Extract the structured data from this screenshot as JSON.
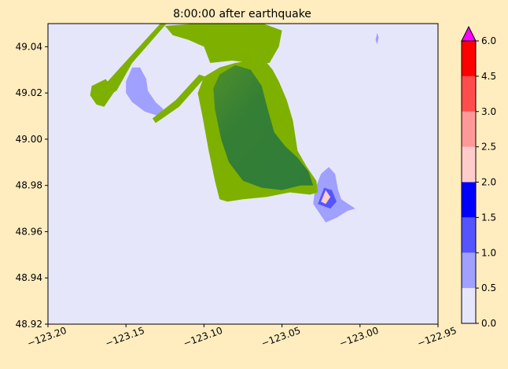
{
  "chart_data": {
    "type": "heatmap",
    "title": "8:00:00 after earthquake",
    "xlabel": "",
    "ylabel": "",
    "xlim": [
      -123.2,
      -122.95
    ],
    "ylim": [
      48.92,
      49.05
    ],
    "x_ticks": [
      -123.2,
      -123.15,
      -123.1,
      -123.05,
      -123.0,
      -122.95
    ],
    "x_tick_labels": [
      "−123.20",
      "−123.15",
      "−123.10",
      "−123.05",
      "−123.00",
      "−122.95"
    ],
    "y_ticks": [
      48.92,
      48.94,
      48.96,
      48.98,
      49.0,
      49.02,
      49.04
    ],
    "y_tick_labels": [
      "48.92",
      "48.94",
      "48.96",
      "48.98",
      "49.00",
      "49.02",
      "49.04"
    ],
    "background_value_color": "#e6e6fb",
    "land_colors": {
      "dark": "#357f35",
      "light": "#7eb000"
    },
    "colorbar": {
      "levels": [
        0.0,
        0.5,
        1.0,
        1.5,
        2.0,
        2.5,
        3.0,
        4.5,
        6.0
      ],
      "tick_labels": [
        "0.0",
        "0.5",
        "1.0",
        "1.5",
        "2.0",
        "2.5",
        "3.0",
        "4.5",
        "6.0"
      ],
      "colors": [
        "#e6e6fb",
        "#a0a0ff",
        "#5555ff",
        "#0000ff",
        "#ffcccc",
        "#ff9999",
        "#ff4d4d",
        "#ff0000"
      ],
      "extend_max_color": "#ff00ff"
    },
    "inundation_patches": [
      {
        "name": "west-bay",
        "level": 0.5,
        "points": [
          [
            -123.15,
            49.025
          ],
          [
            -123.146,
            49.031
          ],
          [
            -123.141,
            49.031
          ],
          [
            -123.137,
            49.026
          ],
          [
            -123.136,
            49.021
          ],
          [
            -123.131,
            49.016
          ],
          [
            -123.126,
            49.013
          ],
          [
            -123.129,
            49.01
          ],
          [
            -123.138,
            49.012
          ],
          [
            -123.146,
            49.016
          ],
          [
            -123.15,
            49.02
          ]
        ]
      },
      {
        "name": "east-spit-shallow",
        "level": 0.5,
        "points": [
          [
            -123.025,
            48.985
          ],
          [
            -123.02,
            48.988
          ],
          [
            -123.016,
            48.985
          ],
          [
            -123.014,
            48.978
          ],
          [
            -123.012,
            48.974
          ],
          [
            -123.003,
            48.97
          ],
          [
            -123.008,
            48.969
          ],
          [
            -123.015,
            48.966
          ],
          [
            -123.022,
            48.964
          ],
          [
            -123.03,
            48.972
          ],
          [
            -123.029,
            48.978
          ]
        ]
      },
      {
        "name": "east-spit-mid",
        "level": 1.0,
        "points": [
          [
            -123.023,
            48.979
          ],
          [
            -123.018,
            48.978
          ],
          [
            -123.015,
            48.973
          ],
          [
            -123.019,
            48.97
          ],
          [
            -123.027,
            48.972
          ]
        ]
      },
      {
        "name": "east-spit-deep",
        "level": 2.0,
        "points": [
          [
            -123.022,
            48.978
          ],
          [
            -123.019,
            48.975
          ],
          [
            -123.022,
            48.972
          ],
          [
            -123.025,
            48.973
          ]
        ]
      },
      {
        "name": "north-east-dot",
        "level": 0.5,
        "points": [
          [
            -122.989,
            49.046
          ],
          [
            -122.988,
            49.044
          ],
          [
            -122.989,
            49.041
          ],
          [
            -122.99,
            49.043
          ]
        ]
      }
    ],
    "land_regions": [
      {
        "name": "peninsula-outer",
        "shade": "light",
        "points": [
          [
            -123.1,
            49.027
          ],
          [
            -123.09,
            49.031
          ],
          [
            -123.08,
            49.033
          ],
          [
            -123.07,
            49.034
          ],
          [
            -123.062,
            49.035
          ],
          [
            -123.056,
            49.03
          ],
          [
            -123.052,
            49.025
          ],
          [
            -123.047,
            49.017
          ],
          [
            -123.043,
            49.008
          ],
          [
            -123.04,
            48.995
          ],
          [
            -123.034,
            48.988
          ],
          [
            -123.028,
            48.982
          ],
          [
            -123.027,
            48.977
          ],
          [
            -123.032,
            48.976
          ],
          [
            -123.045,
            48.977
          ],
          [
            -123.06,
            48.975
          ],
          [
            -123.075,
            48.974
          ],
          [
            -123.085,
            48.973
          ],
          [
            -123.09,
            48.974
          ],
          [
            -123.093,
            48.982
          ],
          [
            -123.097,
            48.995
          ],
          [
            -123.101,
            49.01
          ],
          [
            -123.104,
            49.02
          ]
        ]
      },
      {
        "name": "peninsula-core",
        "shade": "dark",
        "points": [
          [
            -123.09,
            49.028
          ],
          [
            -123.08,
            49.032
          ],
          [
            -123.07,
            49.03
          ],
          [
            -123.063,
            49.023
          ],
          [
            -123.06,
            49.015
          ],
          [
            -123.055,
            49.003
          ],
          [
            -123.048,
            48.997
          ],
          [
            -123.04,
            48.992
          ],
          [
            -123.033,
            48.986
          ],
          [
            -123.03,
            48.98
          ],
          [
            -123.038,
            48.98
          ],
          [
            -123.05,
            48.978
          ],
          [
            -123.063,
            48.979
          ],
          [
            -123.075,
            48.982
          ],
          [
            -123.084,
            48.99
          ],
          [
            -123.089,
            49.0
          ],
          [
            -123.093,
            49.013
          ],
          [
            -123.094,
            49.022
          ]
        ]
      },
      {
        "name": "north-mainland",
        "shade": "light",
        "points": [
          [
            -123.125,
            49.049
          ],
          [
            -123.105,
            49.05
          ],
          [
            -123.09,
            49.05
          ],
          [
            -123.075,
            49.05
          ],
          [
            -123.062,
            49.05
          ],
          [
            -123.05,
            49.047
          ],
          [
            -123.052,
            49.04
          ],
          [
            -123.058,
            49.033
          ],
          [
            -123.07,
            49.033
          ],
          [
            -123.082,
            49.034
          ],
          [
            -123.096,
            49.033
          ],
          [
            -123.1,
            49.04
          ],
          [
            -123.11,
            49.043
          ],
          [
            -123.12,
            49.045
          ]
        ]
      },
      {
        "name": "west-causeway",
        "shade": "light",
        "points": [
          [
            -123.128,
            49.05
          ],
          [
            -123.124,
            49.05
          ],
          [
            -123.146,
            49.033
          ],
          [
            -123.156,
            49.021
          ],
          [
            -123.168,
            49.016
          ],
          [
            -123.163,
            49.024
          ],
          [
            -123.151,
            49.033
          ]
        ]
      },
      {
        "name": "west-islet",
        "shade": "light",
        "points": [
          [
            -123.172,
            49.023
          ],
          [
            -123.163,
            49.026
          ],
          [
            -123.157,
            49.021
          ],
          [
            -123.164,
            49.014
          ],
          [
            -123.169,
            49.015
          ],
          [
            -123.173,
            49.019
          ]
        ]
      },
      {
        "name": "east-causeway",
        "shade": "light",
        "points": [
          [
            -123.103,
            49.028
          ],
          [
            -123.099,
            49.027
          ],
          [
            -123.116,
            49.014
          ],
          [
            -123.131,
            49.007
          ],
          [
            -123.133,
            49.009
          ],
          [
            -123.118,
            49.017
          ]
        ]
      }
    ]
  }
}
